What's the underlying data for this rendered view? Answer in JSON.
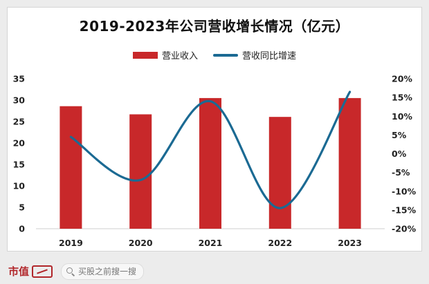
{
  "chart_data": {
    "type": "bar",
    "title": "2019-2023年公司营收增长情况（亿元）",
    "categories": [
      "2019",
      "2020",
      "2021",
      "2022",
      "2023"
    ],
    "series": [
      {
        "name": "营业收入",
        "kind": "bar",
        "axis": "left",
        "color": "#c8282a",
        "values": [
          28.6,
          26.7,
          30.5,
          26.1,
          30.5
        ]
      },
      {
        "name": "营收同比增速",
        "kind": "line",
        "axis": "right",
        "color": "#1b6a93",
        "values": [
          4.5,
          -7.0,
          14.0,
          -14.5,
          16.5
        ]
      }
    ],
    "y_left": {
      "min": 0,
      "max": 35,
      "ticks": [
        "0",
        "5",
        "10",
        "15",
        "20",
        "25",
        "30",
        "35"
      ]
    },
    "y_right": {
      "min": -20,
      "max": 20,
      "ticks": [
        "-20%",
        "-15%",
        "-10%",
        "-5%",
        "0%",
        "5%",
        "10%",
        "15%",
        "20%"
      ]
    },
    "legend": "top-center",
    "grid": false
  },
  "footer": {
    "brand": "市值",
    "search_placeholder": "买股之前搜一搜"
  }
}
